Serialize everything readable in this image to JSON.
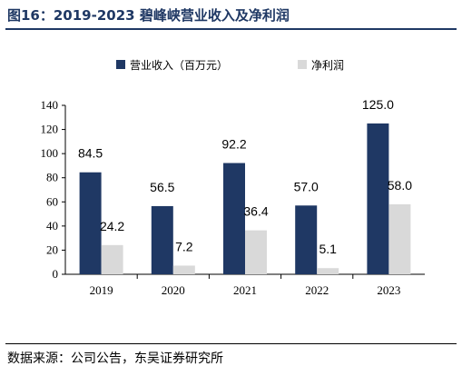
{
  "header": {
    "title": "图16：2019-2023 碧峰峡营业收入及净利润"
  },
  "footer": {
    "source": "数据来源：公司公告，东吴证券研究所"
  },
  "colors": {
    "revenue": "#1f3864",
    "net_profit": "#d9d9d9",
    "title": "#1f3864"
  },
  "chart_data": {
    "type": "bar",
    "categories": [
      "2019",
      "2020",
      "2021",
      "2022",
      "2023"
    ],
    "series": [
      {
        "name": "营业收入（百万元）",
        "values": [
          84.5,
          56.5,
          92.2,
          57.0,
          125.0
        ],
        "labels": [
          "84.5",
          "56.5",
          "92.2",
          "57.0",
          "125.0"
        ]
      },
      {
        "name": "净利润",
        "values": [
          24.2,
          7.2,
          36.4,
          5.1,
          58.0
        ],
        "labels": [
          "24.2",
          "7.2",
          "36.4",
          "5.1",
          "58.0"
        ]
      }
    ],
    "ylim": [
      0,
      140
    ],
    "yticks": [
      "0",
      "20",
      "40",
      "60",
      "80",
      "100",
      "120",
      "140"
    ],
    "legend": "top",
    "grid": false
  }
}
